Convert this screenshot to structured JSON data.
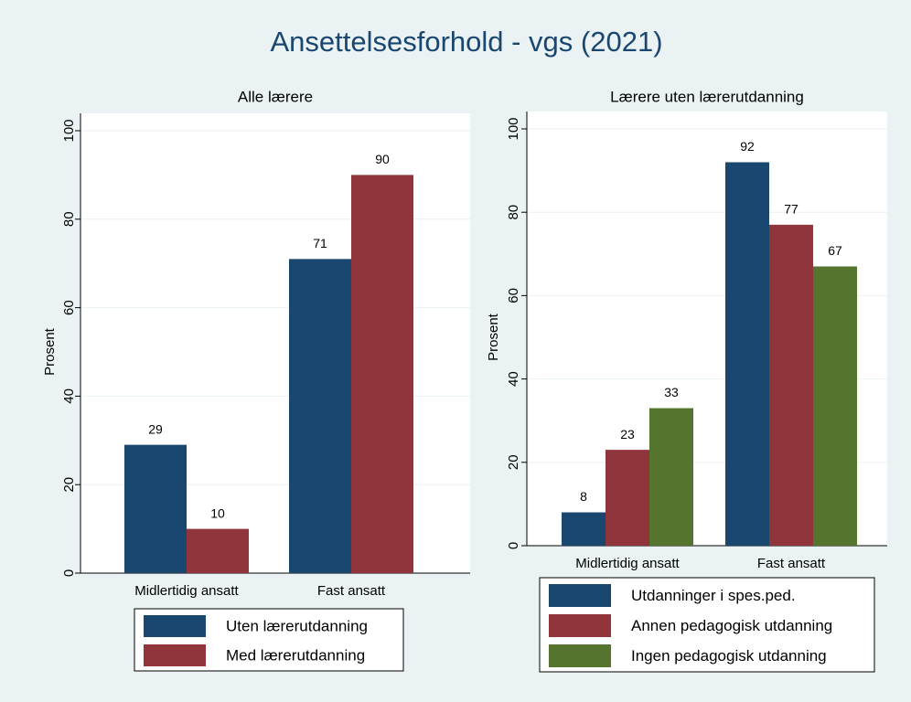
{
  "title": "Ansettelsesforhold - vgs (2021)",
  "chart_data": [
    {
      "type": "bar",
      "title": "Alle lærere",
      "ylabel": "Prosent",
      "categories": [
        "Midlertidig ansatt",
        "Fast ansatt"
      ],
      "series": [
        {
          "name": "Uten lærerutdanning",
          "color": "#1a476f",
          "values": [
            29,
            71
          ]
        },
        {
          "name": "Med lærerutdanning",
          "color": "#90353b",
          "values": [
            10,
            90
          ]
        }
      ],
      "ylim": [
        0,
        100
      ],
      "yticks": [
        0,
        20,
        40,
        60,
        80,
        100
      ],
      "grid": true,
      "legend": "bottom"
    },
    {
      "type": "bar",
      "title": "Lærere uten lærerutdanning",
      "ylabel": "Prosent",
      "categories": [
        "Midlertidig ansatt",
        "Fast ansatt"
      ],
      "series": [
        {
          "name": "Utdanninger i spes.ped.",
          "color": "#1a476f",
          "values": [
            8,
            92
          ]
        },
        {
          "name": "Annen pedagogisk utdanning",
          "color": "#90353b",
          "values": [
            23,
            77
          ]
        },
        {
          "name": "Ingen pedagogisk utdanning",
          "color": "#55752f",
          "values": [
            33,
            67
          ]
        }
      ],
      "ylim": [
        0,
        100
      ],
      "yticks": [
        0,
        20,
        40,
        60,
        80,
        100
      ],
      "grid": true,
      "legend": "bottom"
    }
  ]
}
